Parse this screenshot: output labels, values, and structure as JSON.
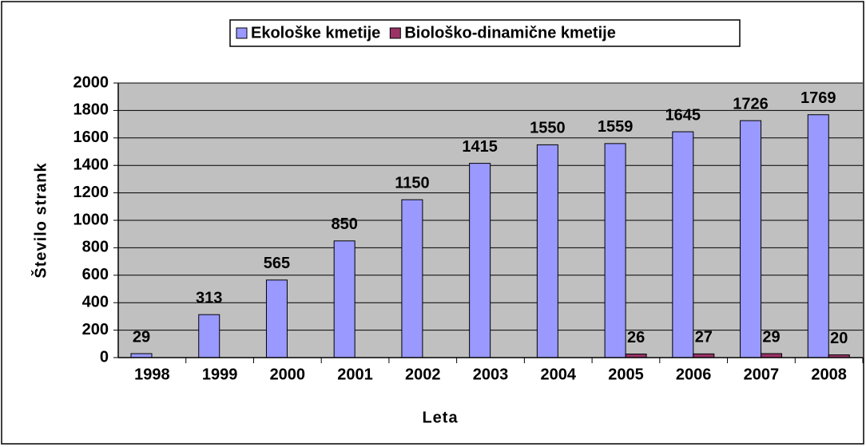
{
  "chart_data": {
    "type": "bar",
    "x_label": "Leta",
    "y_label": "Število strank",
    "categories": [
      "1998",
      "1999",
      "2000",
      "2001",
      "2002",
      "2003",
      "2004",
      "2005",
      "2006",
      "2007",
      "2008"
    ],
    "series": [
      {
        "name": "Ekološke kmetije",
        "color": "#9999ff",
        "values": [
          29,
          313,
          565,
          850,
          1150,
          1415,
          1550,
          1559,
          1645,
          1726,
          1769
        ]
      },
      {
        "name": "Biološko-dinamične kmetije",
        "color": "#993366",
        "values": [
          null,
          null,
          null,
          null,
          null,
          null,
          null,
          26,
          27,
          29,
          20
        ]
      }
    ],
    "ylim": [
      0,
      2000
    ],
    "yticks": [
      0,
      200,
      400,
      600,
      800,
      1000,
      1200,
      1400,
      1600,
      1800,
      2000
    ],
    "grid": true,
    "legend": "top"
  }
}
